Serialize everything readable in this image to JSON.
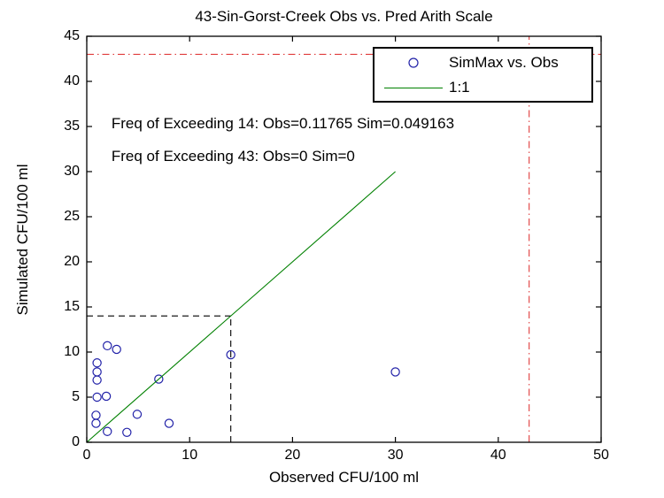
{
  "chart_data": {
    "type": "scatter",
    "title": "43-Sin-Gorst-Creek Obs vs. Pred Arith Scale",
    "xlabel": "Observed CFU/100 ml",
    "ylabel": "Simulated CFU/100 ml",
    "xlim": [
      0,
      50
    ],
    "ylim": [
      0,
      45
    ],
    "xticks": [
      0,
      10,
      20,
      30,
      40,
      50
    ],
    "yticks": [
      0,
      5,
      10,
      15,
      20,
      25,
      30,
      35,
      40,
      45
    ],
    "grid": false,
    "legend": {
      "position": "top-right",
      "entries": [
        {
          "label": "SimMax vs. Obs",
          "type": "marker",
          "marker": "circle",
          "color": "#2121a8"
        },
        {
          "label": "1:1",
          "type": "line",
          "color": "#008000"
        }
      ]
    },
    "series": [
      {
        "name": "SimMax vs. Obs",
        "type": "scatter",
        "marker": "circle",
        "color": "#2121a8",
        "points": [
          [
            1.0,
            8.8
          ],
          [
            1.0,
            7.8
          ],
          [
            1.0,
            6.9
          ],
          [
            2.0,
            10.7
          ],
          [
            2.9,
            10.3
          ],
          [
            1.0,
            5.0
          ],
          [
            1.9,
            5.1
          ],
          [
            0.9,
            3.0
          ],
          [
            0.9,
            2.1
          ],
          [
            2.0,
            1.2
          ],
          [
            3.9,
            1.1
          ],
          [
            4.9,
            3.1
          ],
          [
            8.0,
            2.1
          ],
          [
            7.0,
            7.0
          ],
          [
            14.0,
            9.7
          ],
          [
            30.0,
            7.8
          ]
        ]
      },
      {
        "name": "1:1",
        "type": "line",
        "color": "#008000",
        "points": [
          [
            0,
            0
          ],
          [
            30,
            30
          ]
        ]
      }
    ],
    "reference_lines": [
      {
        "id": "threshold-43-horizontal",
        "orientation": "horizontal",
        "value": 43,
        "span": [
          0,
          50
        ],
        "style": "dash-dot",
        "color": "#e03c3c"
      },
      {
        "id": "threshold-43-vertical",
        "orientation": "vertical",
        "value": 43,
        "span": [
          0,
          45
        ],
        "style": "dash-dot",
        "color": "#e03c3c"
      },
      {
        "id": "threshold-14-horizontal",
        "orientation": "horizontal",
        "value": 14,
        "span": [
          0,
          14
        ],
        "style": "dashed",
        "color": "#000000"
      },
      {
        "id": "threshold-14-vertical",
        "orientation": "vertical",
        "value": 14,
        "span": [
          0,
          14
        ],
        "style": "dashed",
        "color": "#000000"
      }
    ],
    "annotations": [
      {
        "text": "Freq of Exceeding 14: Obs=0.11765 Sim=0.049163",
        "x": 2.4,
        "y": 35.3
      },
      {
        "text": "Freq of Exceeding 43: Obs=0 Sim=0",
        "x": 2.4,
        "y": 31.7
      }
    ]
  }
}
